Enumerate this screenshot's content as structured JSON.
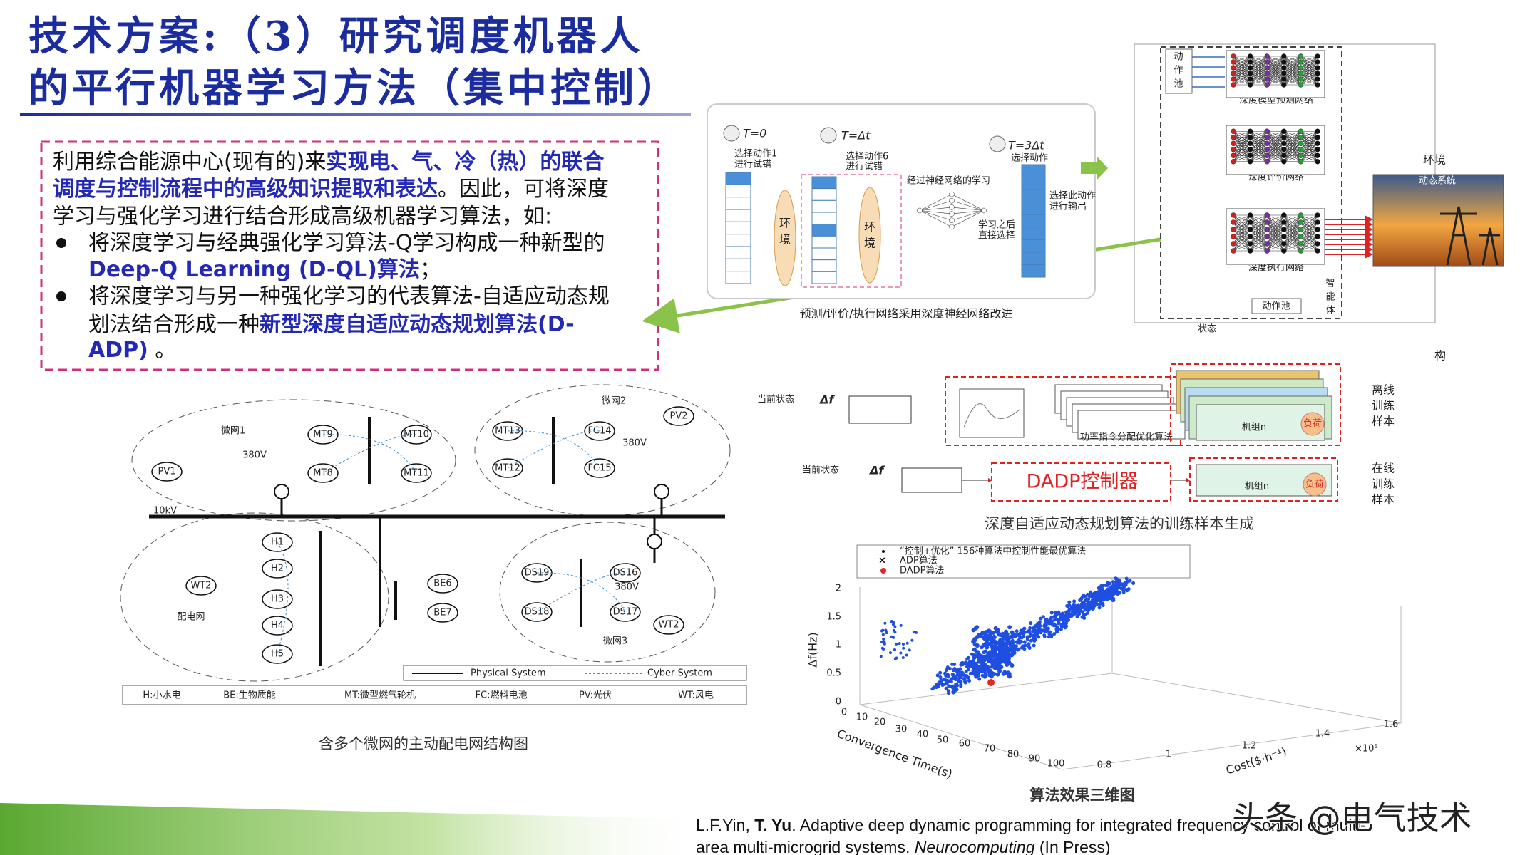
{
  "title": {
    "line1": "技术方案:（3）研究调度机器人",
    "line2": "的平行机器学习方法（集中控制）"
  },
  "intro": [
    "利用综合能源中心(现有的)来",
    "实现电、气、冷（热）的联合",
    "调度与控制流程中的高级知识提取和表达",
    "。因此，可将深度",
    "学习与强化学习进行结合形成高级机器学习算法，如:"
  ],
  "bullets": [
    [
      "将深度学习与经典强化学习算法-Q学习构成一种新型的",
      "Deep-Q Learning (D-QL)算法",
      "；"
    ],
    [
      "将深度学习与另一种强化学习的代表算法-自适应动态规",
      "划法结合形成一种",
      "新型深度自适应动态规划算法(D-",
      "ADP)",
      " 。"
    ]
  ],
  "fig_network": {
    "caption": "预测/评价/执行网络采用深度神经网络改进",
    "t0": "T=0",
    "t1": "T=Δt",
    "t3": "T=3Δt",
    "try1a": "选择动作1",
    "try1b": "进行试错",
    "try6a": "选择动作6",
    "try6b": "进行试错",
    "select": "选择动作",
    "env1a": "环",
    "env1b": "境",
    "env2a": "环",
    "env2b": "境",
    "learn": "经过神经网络的学习",
    "after1": "学习之后",
    "after2": "直接选择",
    "out1": "选择此动作",
    "out2": "进行输出"
  },
  "fig_agent": {
    "pool_top": [
      "动",
      "作",
      "池"
    ],
    "net_predict": "深度模型预测网络",
    "net_critic": "深度评价网络",
    "net_actor": "深度执行网络",
    "pool_bottom": "动作池",
    "agent": [
      "智",
      "能",
      "体"
    ],
    "state": "状态",
    "env": "环境",
    "dynamic": "动态系统",
    "stray": "构"
  },
  "fig_microgrid": {
    "caption": "含多个微网的主动配电网结构图",
    "regions": [
      "微网1",
      "微网2",
      "微网3",
      "配电网"
    ],
    "bus": "10kV",
    "nodes": [
      "MT9",
      "MT10",
      "MT8",
      "MT11",
      "PV1",
      "MT13",
      "FC14",
      "MT12",
      "FC15",
      "PV2",
      "H1",
      "H2",
      "H3",
      "H4",
      "H5",
      "WT2",
      "BE6",
      "BE7",
      "DS19",
      "DS16",
      "DS18",
      "DS17",
      "WT2"
    ],
    "voltages": [
      "380V",
      "380V",
      "380V"
    ],
    "legend": [
      "Physical System",
      "Cyber System"
    ],
    "key": [
      "H:小水电",
      "BE:生物质能",
      "MT:微型燃气轮机",
      "FC:燃料电池",
      "PV:光伏",
      "WT:风电"
    ]
  },
  "fig_dadp": {
    "caption": "深度自适应动态规划算法的训练样本生成",
    "state1": "当前状态",
    "df1": "Δf",
    "state2": "当前状态",
    "df2": "Δf",
    "optimizer": "功率指令分配优化算法",
    "controller": "DADP控制器",
    "unit1": "机组n",
    "load1": "负荷",
    "unit2": "机组n",
    "load2": "负荷",
    "offline": [
      "离线",
      "训练",
      "样本"
    ],
    "online": [
      "在线",
      "训练",
      "样本"
    ]
  },
  "fig_3d": {
    "caption": "算法效果三维图",
    "legend": [
      "“控制+优化” 156种算法中控制性能最优算法",
      "ADP算法",
      "DADP算法"
    ],
    "zlabel": "Δf(Hz)",
    "xlabel": "Convergence Time(s)",
    "ylabel": "Cost($·h⁻¹)",
    "zticks": [
      "2",
      "1.5",
      "1",
      "0.5",
      "0"
    ],
    "xticks": [
      "0",
      "10",
      "20",
      "30",
      "40",
      "50",
      "60",
      "70",
      "80",
      "90",
      "100"
    ],
    "yticks": [
      "0.8",
      "1",
      "1.2",
      "1.4",
      "1.6"
    ],
    "yscale": "×10⁵"
  },
  "citation": {
    "a": "L.F.Yin, ",
    "b": "T. Yu",
    "c": ". Adaptive deep dynamic programming for integrated frequency control of multi-",
    "d": "area multi-microgrid systems. ",
    "e": "Neurocomputing",
    "f": " (In Press)"
  },
  "watermark": "头条 @电气技术"
}
